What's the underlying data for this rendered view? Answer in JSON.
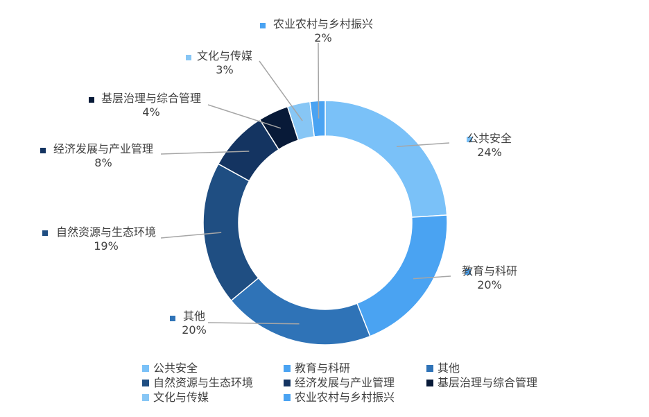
{
  "chart_data": {
    "type": "pie",
    "variant": "donut",
    "title": "",
    "unit": "%",
    "legend": "bottom",
    "categories": [
      "公共安全",
      "教育与科研",
      "其他",
      "自然资源与生态环境",
      "经济发展与产业管理",
      "基层治理与综合管理",
      "文化与传媒",
      "农业农村与乡村振兴"
    ],
    "values": [
      24,
      20,
      20,
      19,
      8,
      4,
      3,
      2
    ],
    "labels": [
      "24%",
      "20%",
      "20%",
      "19%",
      "8%",
      "4%",
      "3%",
      "2%"
    ],
    "colors": [
      "#7AC1F8",
      "#4AA3F2",
      "#2F73B7",
      "#1F4E82",
      "#143461",
      "#081A38",
      "#87C6F5",
      "#4AA3F2"
    ]
  }
}
